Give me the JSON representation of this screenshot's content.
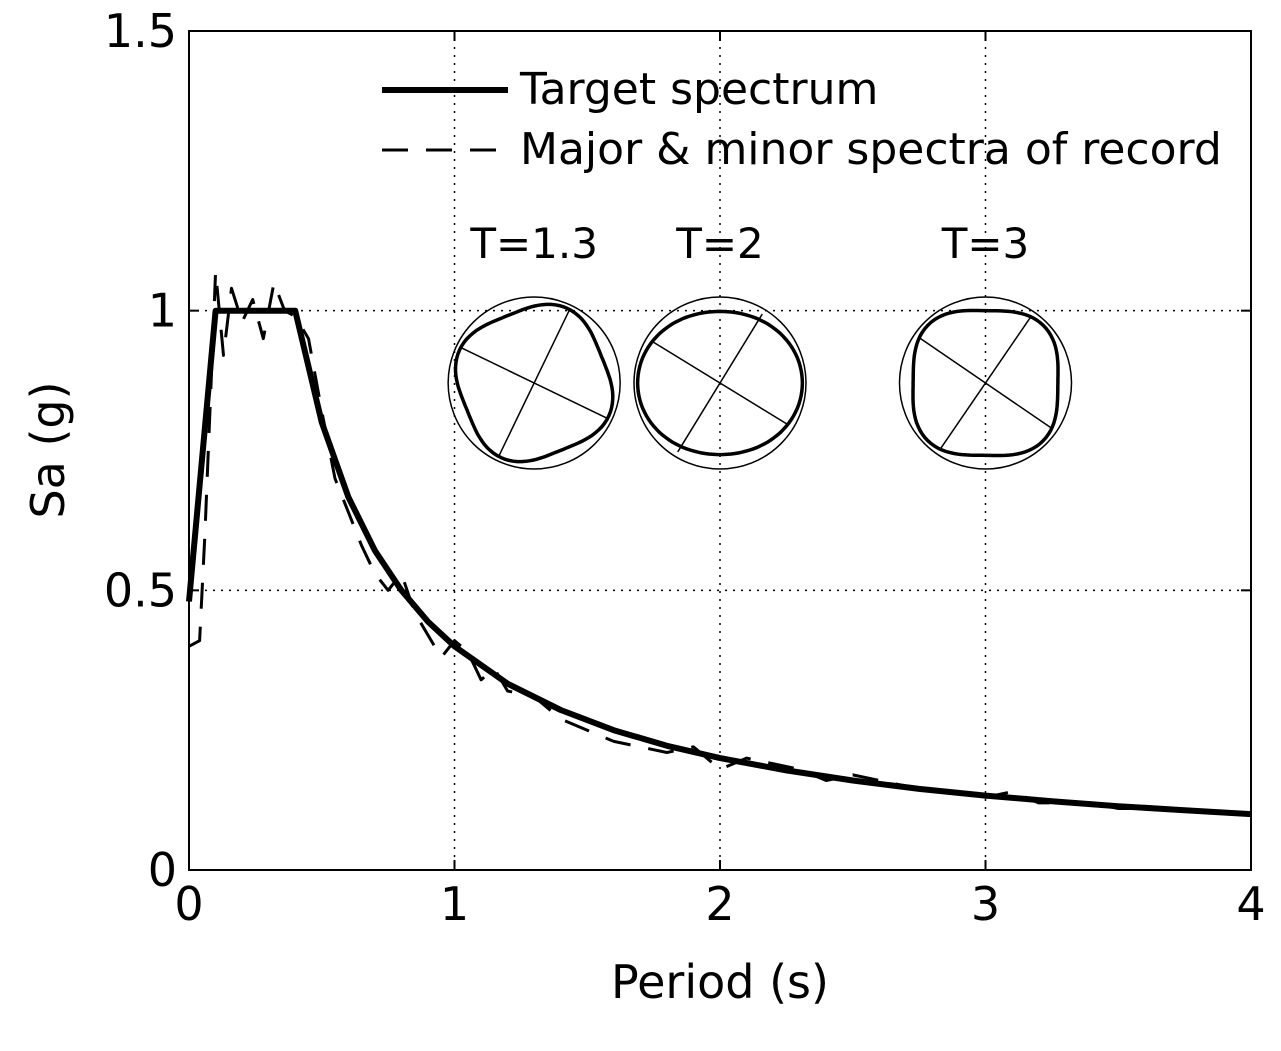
{
  "chart_data": {
    "type": "line",
    "title": "",
    "xlabel": "Period (s)",
    "ylabel": "Sa (g)",
    "xlim": [
      0,
      4
    ],
    "ylim": [
      0,
      1.5
    ],
    "xticks": [
      0,
      1,
      2,
      3,
      4
    ],
    "xtick_labels": [
      "0",
      "1",
      "2",
      "3",
      "4"
    ],
    "yticks": [
      0,
      0.5,
      1,
      1.5
    ],
    "ytick_labels": [
      "0",
      "0.5",
      "1",
      "1.5"
    ],
    "grid": true,
    "legend_position": "top-right",
    "series": [
      {
        "name": "Target spectrum",
        "style": "solid",
        "x": [
          0,
          0.1,
          0.4,
          0.5,
          0.6,
          0.7,
          0.8,
          0.9,
          1.0,
          1.2,
          1.4,
          1.6,
          1.8,
          2.0,
          2.25,
          2.5,
          2.75,
          3.0,
          3.25,
          3.5,
          3.75,
          4.0
        ],
        "y": [
          0.48,
          1.0,
          1.0,
          0.8,
          0.667,
          0.571,
          0.5,
          0.444,
          0.4,
          0.333,
          0.286,
          0.25,
          0.222,
          0.2,
          0.178,
          0.16,
          0.145,
          0.133,
          0.123,
          0.114,
          0.107,
          0.1
        ]
      },
      {
        "name": "Major & minor spectra of record",
        "style": "dashed",
        "x": [
          0,
          0.04,
          0.06,
          0.09,
          0.1,
          0.13,
          0.16,
          0.2,
          0.24,
          0.28,
          0.32,
          0.36,
          0.4,
          0.45,
          0.5,
          0.55,
          0.6,
          0.65,
          0.7,
          0.75,
          0.8,
          0.85,
          0.9,
          0.95,
          1.0,
          1.05,
          1.1,
          1.15,
          1.2,
          1.3,
          1.4,
          1.5,
          1.6,
          1.7,
          1.8,
          1.9,
          2.0,
          2.05,
          2.1,
          2.2,
          2.3,
          2.4,
          2.5,
          2.6,
          2.7,
          2.8,
          2.9,
          3.0,
          3.1,
          3.2,
          3.3,
          3.4,
          3.5,
          3.6,
          3.7,
          3.8,
          3.9,
          4.0
        ],
        "y": [
          0.4,
          0.41,
          0.6,
          0.95,
          1.07,
          0.92,
          1.04,
          0.98,
          1.02,
          0.95,
          1.05,
          1.0,
          0.99,
          0.95,
          0.82,
          0.7,
          0.64,
          0.58,
          0.53,
          0.5,
          0.53,
          0.46,
          0.42,
          0.38,
          0.41,
          0.39,
          0.34,
          0.36,
          0.32,
          0.31,
          0.27,
          0.25,
          0.23,
          0.22,
          0.21,
          0.22,
          0.18,
          0.19,
          0.2,
          0.19,
          0.18,
          0.16,
          0.17,
          0.16,
          0.15,
          0.14,
          0.14,
          0.13,
          0.14,
          0.12,
          0.12,
          0.12,
          0.11,
          0.11,
          0.11,
          0.105,
          0.105,
          0.1
        ]
      }
    ],
    "annotations": [
      {
        "text": "T=1.3",
        "x": 1.3
      },
      {
        "text": "T=2",
        "x": 2.0
      },
      {
        "text": "T=3",
        "x": 3.0
      }
    ]
  }
}
